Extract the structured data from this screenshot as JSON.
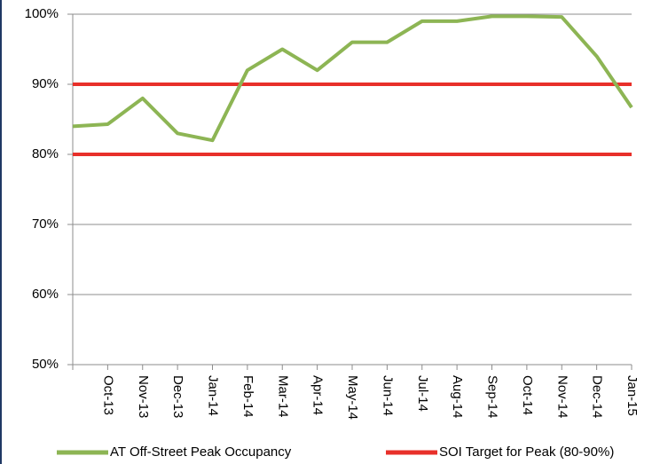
{
  "chart_data": {
    "type": "line",
    "categories": [
      null,
      "Oct-13",
      "Nov-13",
      "Dec-13",
      "Jan-14",
      "Feb-14",
      "Mar-14",
      "Apr-14",
      "May-14",
      "Jun-14",
      "Jul-14",
      "Aug-14",
      "Sep-14",
      "Oct-14",
      "Nov-14",
      "Dec-14",
      "Jan-15"
    ],
    "series": [
      {
        "name": "AT Off-Street Peak Occupancy",
        "color": "#8db554",
        "values": [
          84,
          84.3,
          88,
          83,
          82,
          92,
          95,
          92,
          96,
          96,
          99,
          99,
          99.7,
          99.7,
          99.6,
          94,
          86.7
        ]
      }
    ],
    "target": {
      "name": "SOI Target for Peak (80-90%)",
      "color": "#e8302a",
      "values": [
        80,
        90
      ]
    },
    "ylim": [
      50,
      100
    ],
    "yticks": [
      {
        "value": 50,
        "label": "50%"
      },
      {
        "value": 60,
        "label": "60%"
      },
      {
        "value": 70,
        "label": "70%"
      },
      {
        "value": 80,
        "label": "80%"
      },
      {
        "value": 90,
        "label": "90%"
      },
      {
        "value": 100,
        "label": "100%"
      }
    ],
    "grid": true
  }
}
